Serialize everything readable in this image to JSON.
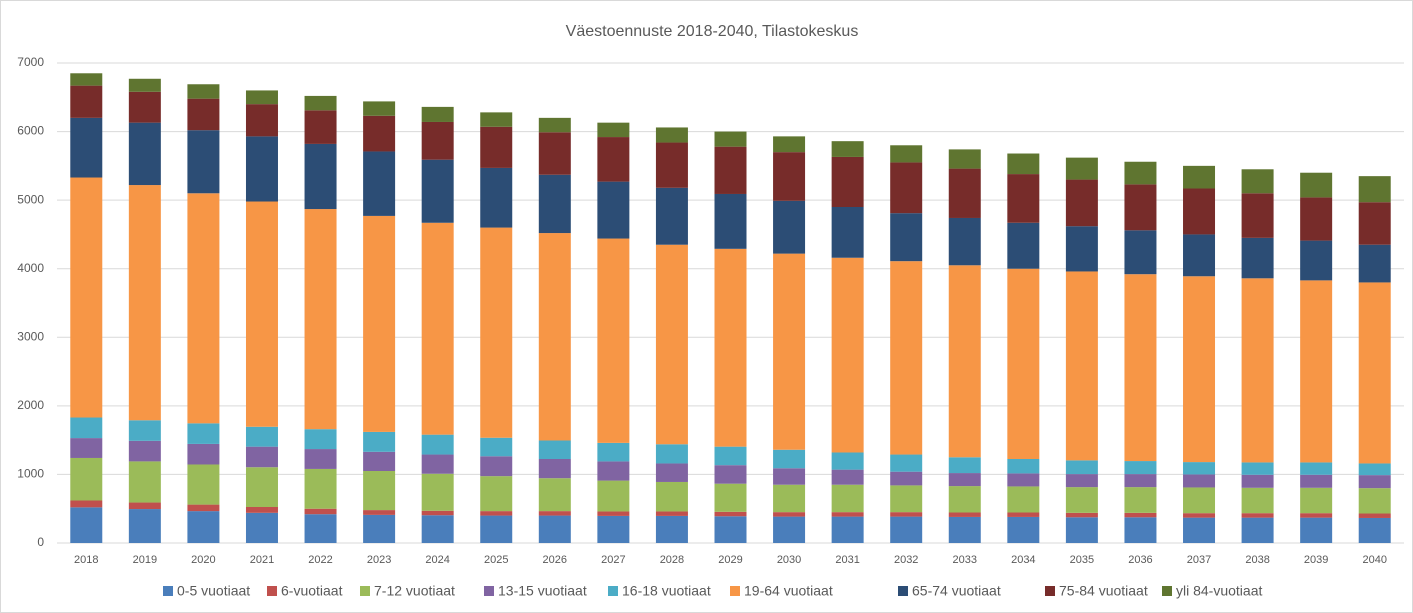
{
  "chart_data": {
    "type": "stacked_bar",
    "title": "Väestoennuste 2018-2040, Tilastokeskus",
    "categories": [
      "2018",
      "2019",
      "2020",
      "2021",
      "2022",
      "2023",
      "2024",
      "2025",
      "2026",
      "2027",
      "2028",
      "2029",
      "2030",
      "2031",
      "2032",
      "2033",
      "2034",
      "2035",
      "2036",
      "2037",
      "2038",
      "2039",
      "2040"
    ],
    "series": [
      {
        "name": "0-5 vuotiaat",
        "color": "#4a7ebb",
        "values": [
          520,
          495,
          465,
          440,
          420,
          410,
          405,
          400,
          400,
          395,
          395,
          390,
          385,
          385,
          385,
          380,
          380,
          375,
          375,
          370,
          370,
          370,
          365
        ]
      },
      {
        "name": "6-vuotiaat",
        "color": "#c0504d",
        "values": [
          100,
          95,
          95,
          85,
          80,
          70,
          65,
          65,
          65,
          65,
          65,
          65,
          65,
          65,
          65,
          65,
          65,
          65,
          65,
          65,
          65,
          65,
          65
        ]
      },
      {
        "name": "7-12 vuotiaat",
        "color": "#9bbb59",
        "values": [
          620,
          600,
          585,
          580,
          580,
          570,
          540,
          510,
          480,
          450,
          430,
          410,
          400,
          400,
          390,
          385,
          380,
          375,
          375,
          375,
          370,
          370,
          370
        ]
      },
      {
        "name": "13-15 vuotiaat",
        "color": "#8064a2",
        "values": [
          290,
          300,
          300,
          300,
          290,
          280,
          280,
          290,
          280,
          280,
          270,
          270,
          240,
          220,
          200,
          190,
          190,
          190,
          190,
          190,
          190,
          190,
          190
        ]
      },
      {
        "name": "16-18 vuotiaat",
        "color": "#4bacc6",
        "values": [
          300,
          300,
          300,
          290,
          290,
          290,
          290,
          270,
          270,
          270,
          280,
          270,
          270,
          250,
          250,
          230,
          210,
          200,
          190,
          180,
          180,
          180,
          170
        ]
      },
      {
        "name": "19-64 vuotiaat",
        "color": "#f79646",
        "values": [
          3500,
          3430,
          3355,
          3285,
          3210,
          3150,
          3090,
          3065,
          3025,
          2980,
          2910,
          2885,
          2860,
          2840,
          2820,
          2800,
          2775,
          2755,
          2725,
          2710,
          2685,
          2655,
          2640
        ]
      },
      {
        "name": "65-74 vuotiaat",
        "color": "#2c4d75",
        "values": [
          870,
          910,
          920,
          950,
          950,
          940,
          920,
          870,
          850,
          830,
          830,
          800,
          770,
          740,
          700,
          690,
          670,
          660,
          640,
          610,
          590,
          580,
          550
        ]
      },
      {
        "name": "75-84 vuotiaat",
        "color": "#772c2a",
        "values": [
          470,
          450,
          460,
          470,
          490,
          520,
          550,
          600,
          620,
          650,
          660,
          690,
          710,
          730,
          740,
          720,
          710,
          680,
          670,
          670,
          650,
          630,
          620
        ]
      },
      {
        "name": "yli 84-vuotiaat",
        "color": "#5f7530",
        "values": [
          180,
          190,
          210,
          200,
          210,
          210,
          220,
          210,
          210,
          210,
          220,
          220,
          230,
          230,
          250,
          280,
          300,
          320,
          330,
          330,
          350,
          360,
          380
        ]
      }
    ],
    "ylim": [
      0,
      7000
    ],
    "yticks": [
      0,
      1000,
      2000,
      3000,
      4000,
      5000,
      6000,
      7000
    ],
    "grid": true,
    "legend": "bottom"
  }
}
